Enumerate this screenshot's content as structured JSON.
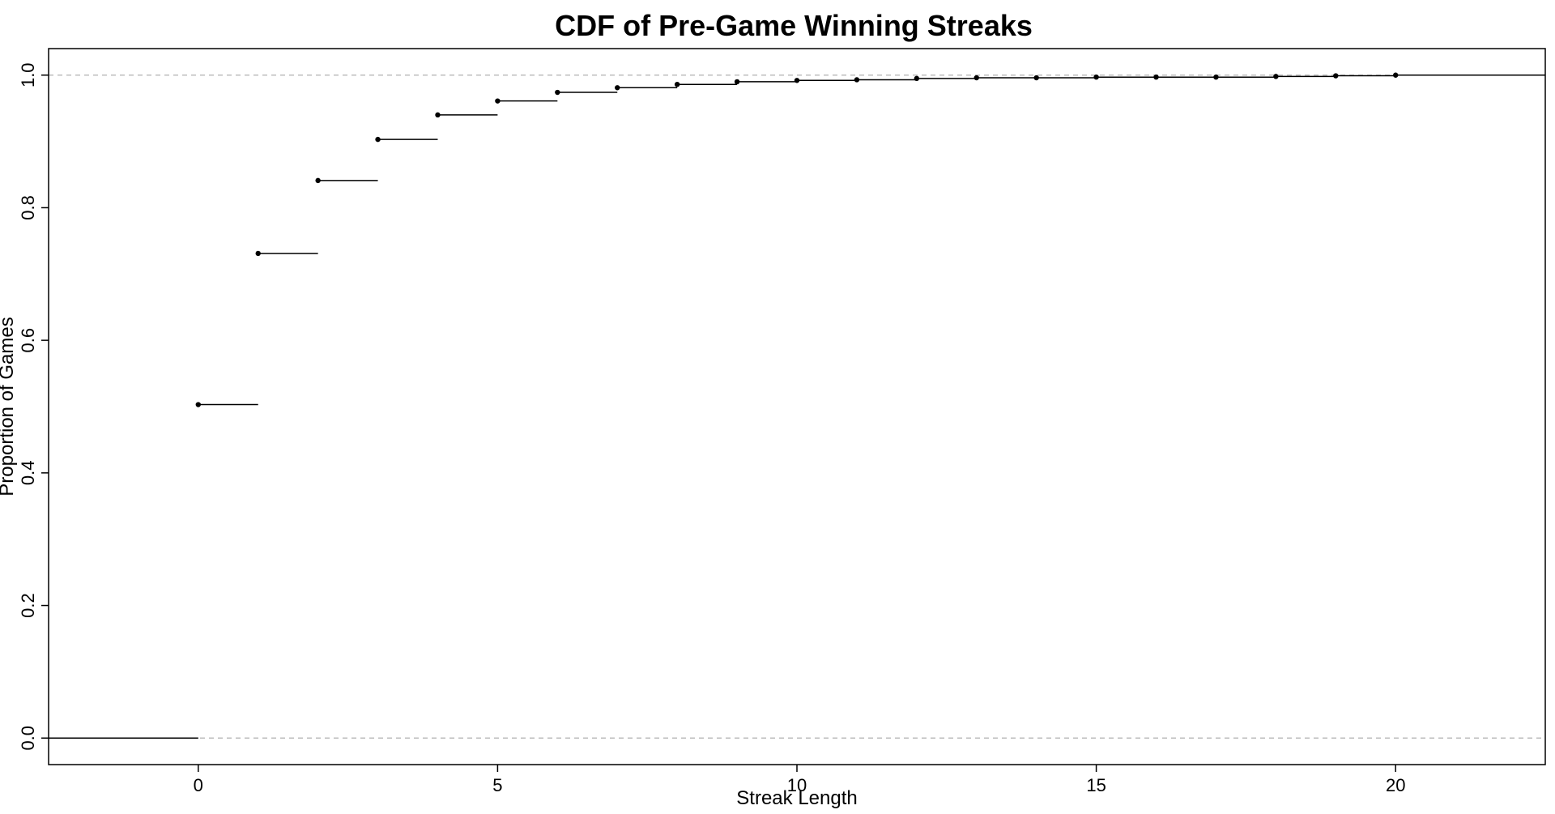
{
  "chart_data": {
    "type": "line",
    "subtype": "step-cdf",
    "title": "CDF of Pre-Game Winning Streaks",
    "xlabel": "Streak Length",
    "ylabel": "Proportion of Games",
    "xlim": [
      -2.5,
      22.5
    ],
    "ylim": [
      -0.04,
      1.04
    ],
    "x_ticks": [
      0,
      5,
      10,
      15,
      20
    ],
    "y_ticks": [
      0.0,
      0.2,
      0.4,
      0.6,
      0.8,
      1.0
    ],
    "y_tick_labels": [
      "0.0",
      "0.2",
      "0.4",
      "0.6",
      "0.8",
      "1.0"
    ],
    "reference_lines": [
      0,
      1
    ],
    "grid": false,
    "x": [
      0,
      1,
      2,
      3,
      4,
      5,
      6,
      7,
      8,
      9,
      10,
      11,
      12,
      13,
      14,
      15,
      16,
      17,
      18,
      19,
      20
    ],
    "y": [
      0.503,
      0.731,
      0.841,
      0.903,
      0.94,
      0.961,
      0.974,
      0.981,
      0.986,
      0.99,
      0.992,
      0.993,
      0.995,
      0.996,
      0.996,
      0.997,
      0.997,
      0.997,
      0.998,
      0.999,
      1.0
    ],
    "colors": {
      "line": "#000000",
      "reference": "#bdbdbd"
    }
  }
}
